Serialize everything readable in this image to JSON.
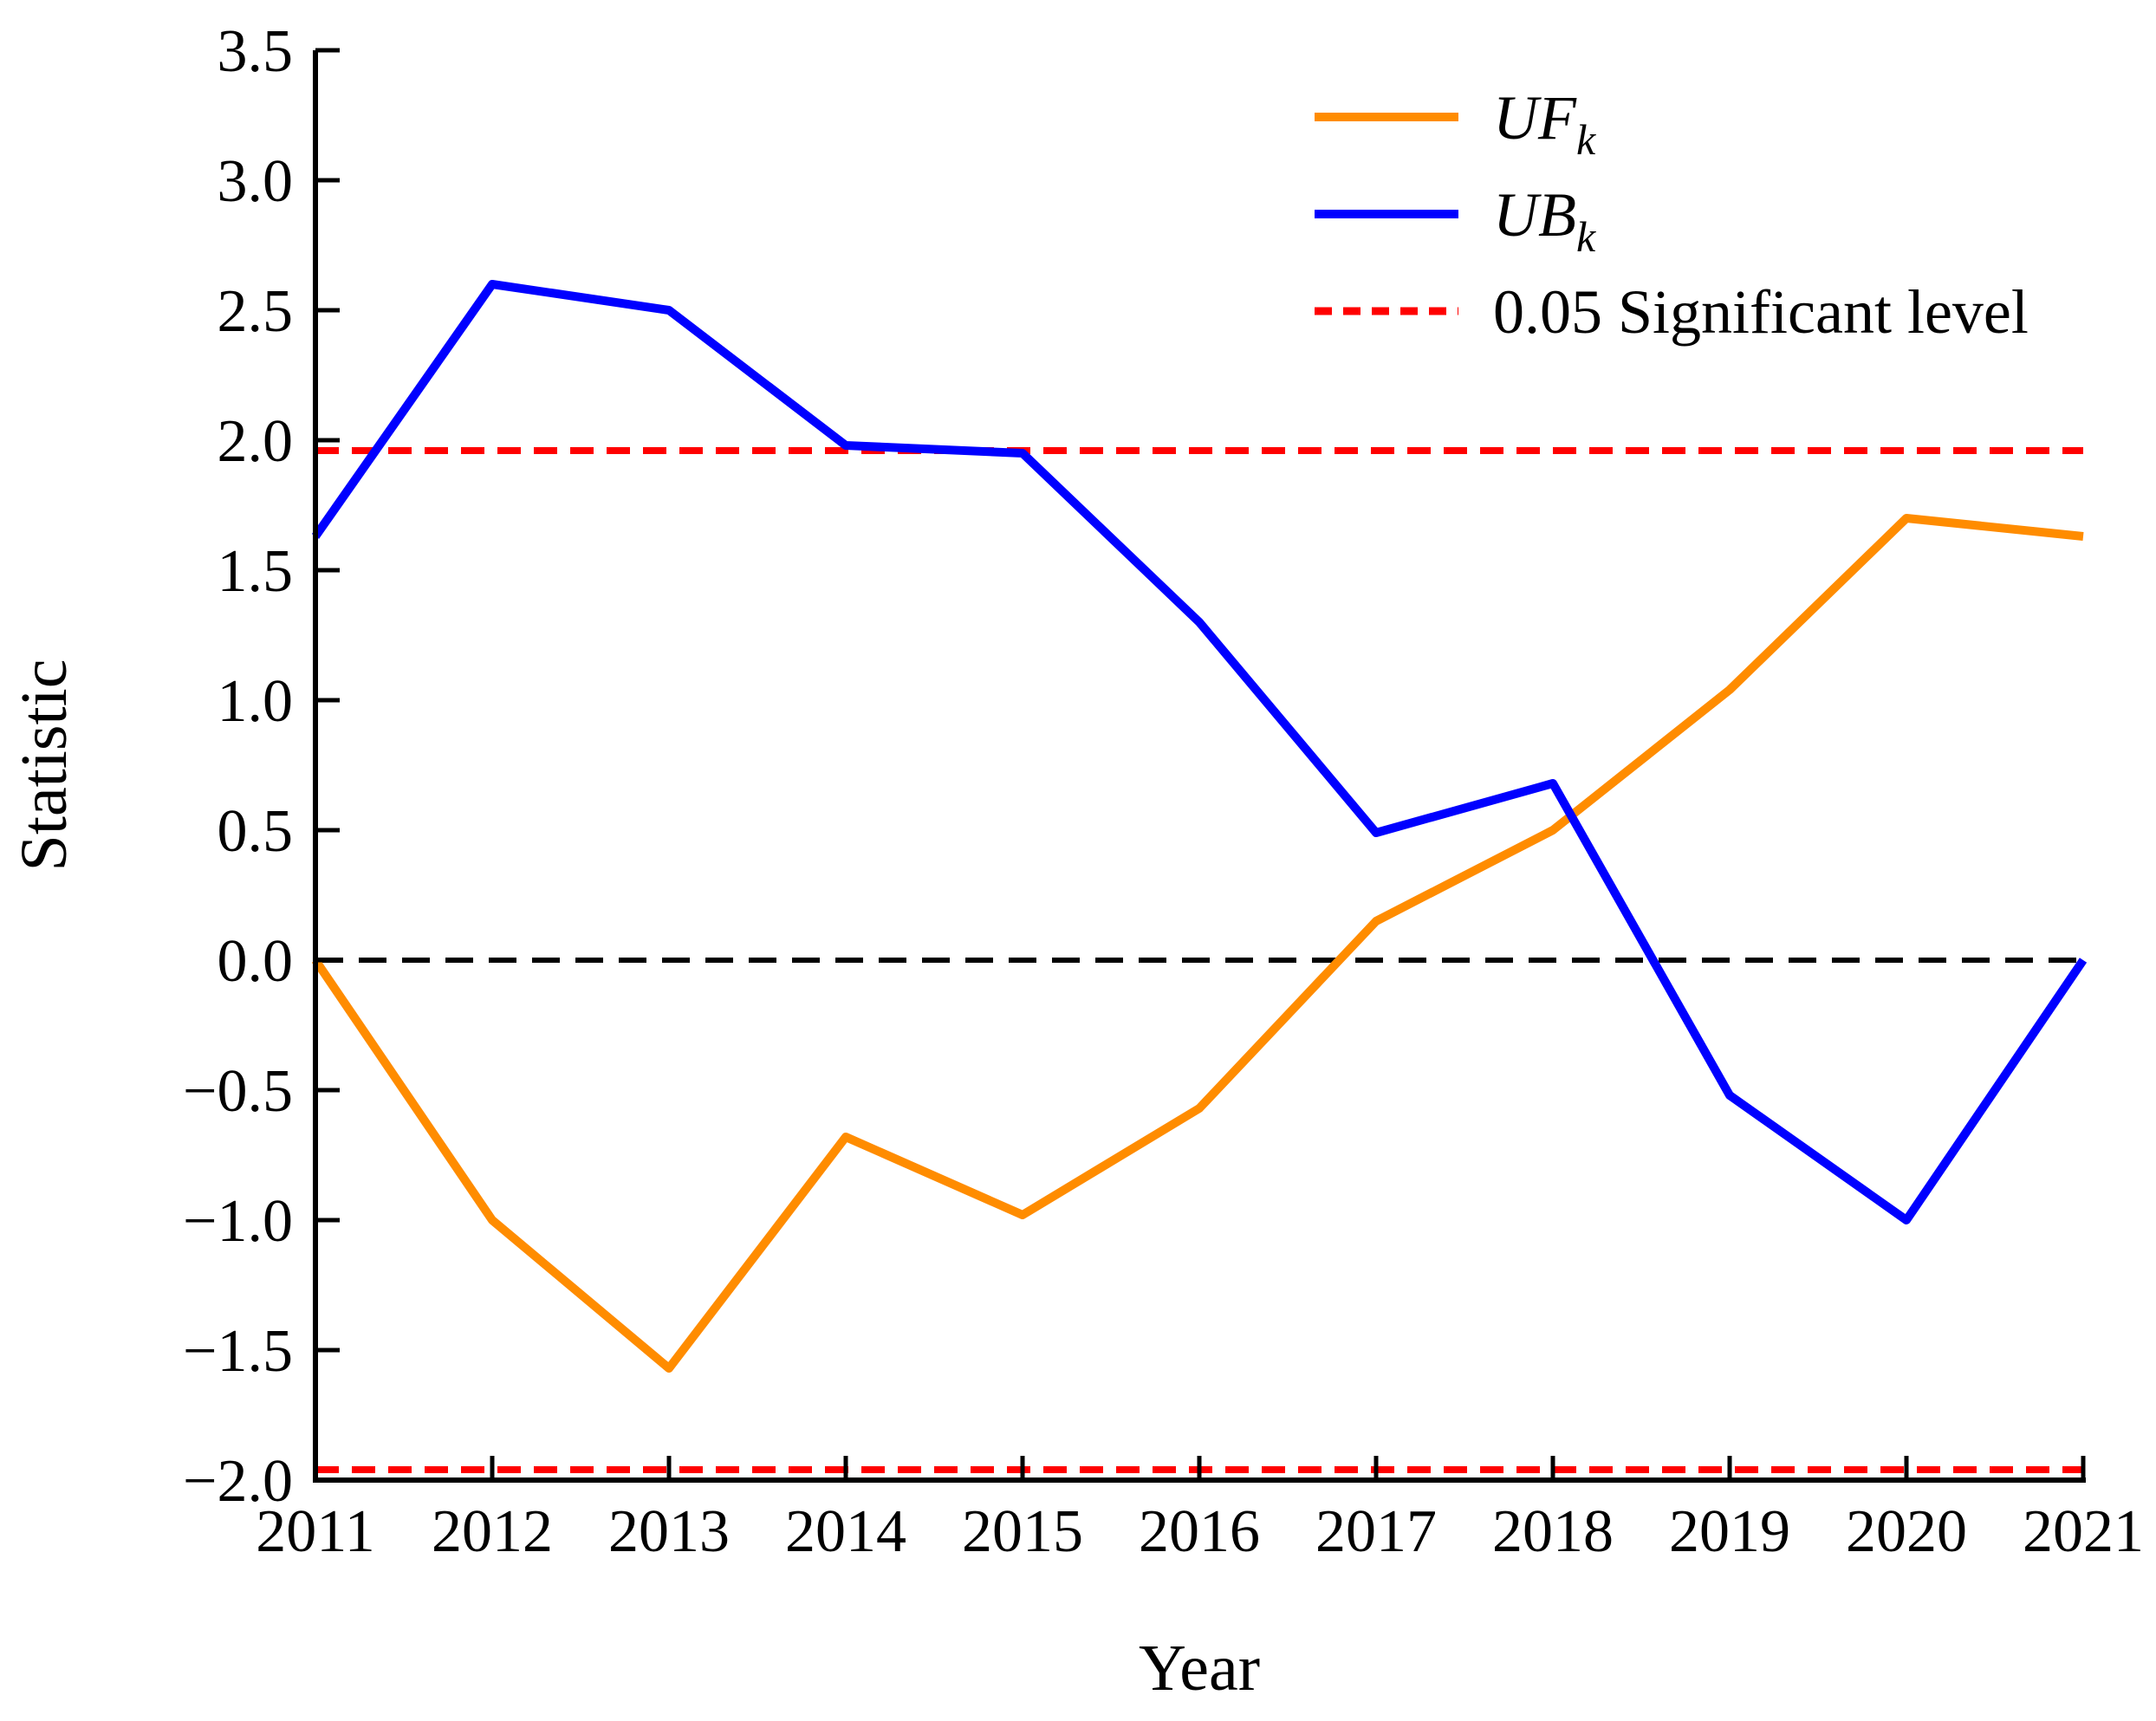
{
  "chart_data": {
    "type": "line",
    "title": "",
    "xlabel": "Year",
    "ylabel": "Statistic",
    "x": [
      2011,
      2012,
      2013,
      2014,
      2015,
      2016,
      2017,
      2018,
      2019,
      2020,
      2021
    ],
    "x_ticks": [
      "2011",
      "2012",
      "2013",
      "2014",
      "2015",
      "2016",
      "2017",
      "2018",
      "2019",
      "2020",
      "2021"
    ],
    "y_ticks": [
      "3.5",
      "3.0",
      "2.5",
      "2.0",
      "1.5",
      "1.0",
      "0.5",
      "0.0",
      "−0.5",
      "−1.0",
      "−1.5",
      "−2.0"
    ],
    "y_tick_values": [
      3.5,
      3.0,
      2.5,
      2.0,
      1.5,
      1.0,
      0.5,
      0.0,
      -0.5,
      -1.0,
      -1.5,
      -2.0
    ],
    "xlim": [
      2011,
      2021
    ],
    "ylim": [
      -2.0,
      3.5
    ],
    "grid": false,
    "series": [
      {
        "name": "UFk",
        "label_main": "UF",
        "label_sub": "k",
        "color": "#FF8C00",
        "style": "solid",
        "values": [
          0.0,
          -1.0,
          -1.57,
          -0.68,
          -0.98,
          -0.57,
          0.15,
          0.5,
          1.04,
          1.7,
          1.63
        ]
      },
      {
        "name": "UBk",
        "label_main": "UB",
        "label_sub": "k",
        "color": "#0000FF",
        "style": "solid",
        "values": [
          1.63,
          2.6,
          2.5,
          1.98,
          1.95,
          1.3,
          0.49,
          0.68,
          -0.52,
          -1.0,
          0.0
        ]
      }
    ],
    "reference_lines": [
      {
        "name": "zero-line",
        "value": 0,
        "color": "#000000",
        "style": "dashed"
      },
      {
        "name": "upper-significance-line",
        "value": 1.96,
        "color": "#FF0000",
        "style": "dashed"
      },
      {
        "name": "lower-significance-line",
        "value": -1.96,
        "color": "#FF0000",
        "style": "dashed"
      }
    ],
    "significance_level": "0.05",
    "legend": {
      "position": "upper-right",
      "items": [
        {
          "main": "UF",
          "sub": "k",
          "color": "#FF8C00",
          "dashed": false
        },
        {
          "main": "UB",
          "sub": "k",
          "color": "#0000FF",
          "dashed": false
        },
        {
          "main": "0.05 Significant level",
          "sub": "",
          "color": "#FF0000",
          "dashed": true
        }
      ]
    }
  }
}
